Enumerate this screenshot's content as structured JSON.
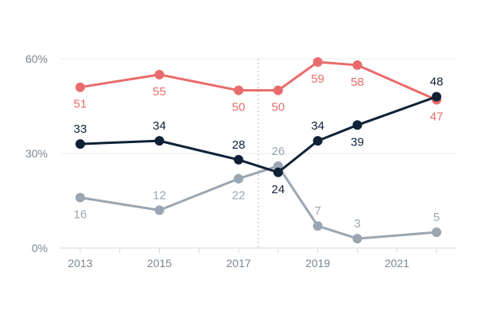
{
  "chart_data": {
    "type": "line",
    "title": "",
    "xlabel": "",
    "ylabel": "",
    "x_values": [
      2013,
      2015,
      2017,
      2018,
      2019,
      2020,
      2022
    ],
    "x_ticks": [
      "2013",
      "2015",
      "2017",
      "2019",
      "2021"
    ],
    "y_ticks": [
      "60%",
      "30%",
      "0%"
    ],
    "ylim": [
      0,
      60
    ],
    "xlim": [
      2012.5,
      2022.5
    ],
    "reference_line_x": 2017.5,
    "series": [
      {
        "name": "red",
        "color": "#EA6B6B",
        "values": [
          51,
          55,
          50,
          50,
          59,
          58,
          47
        ],
        "labels": [
          "51",
          "55",
          "50",
          "50",
          "59",
          "58",
          "47"
        ],
        "label_pos": [
          "below",
          "below",
          "below",
          "below",
          "below",
          "below",
          "below"
        ]
      },
      {
        "name": "navy",
        "color": "#0F2137",
        "values": [
          33,
          34,
          28,
          24,
          34,
          39,
          48
        ],
        "labels": [
          "33",
          "34",
          "28",
          "24",
          "34",
          "39",
          "48"
        ],
        "label_pos": [
          "above",
          "above",
          "above",
          "below",
          "above",
          "below",
          "above"
        ]
      },
      {
        "name": "gray",
        "color": "#9AA6B1",
        "values": [
          16,
          12,
          22,
          26,
          7,
          3,
          5
        ],
        "labels": [
          "16",
          "12",
          "22",
          "26",
          "7",
          "3",
          "5"
        ],
        "label_pos": [
          "below",
          "above",
          "below",
          "above",
          "above",
          "above",
          "above"
        ]
      }
    ]
  },
  "colors": {
    "axis_text": "#7A8692",
    "axis_line": "#D5D9DD",
    "grid": "#E9ECEF"
  }
}
